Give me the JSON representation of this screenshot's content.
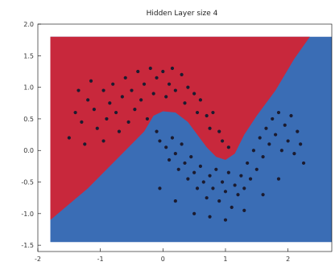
{
  "chart_data": {
    "type": "scatter",
    "title": "Hidden Layer size 4",
    "xlabel": "",
    "ylabel": "",
    "xlim": [
      -2,
      2.7
    ],
    "ylim": [
      -1.6,
      2.0
    ],
    "x_ticks": [
      -2,
      -1,
      0,
      1,
      2
    ],
    "x_tick_labels": [
      "-2",
      "-1",
      "0",
      "1",
      "2"
    ],
    "y_ticks": [
      -1.5,
      -1.0,
      -0.5,
      0.0,
      0.5,
      1.0,
      1.5,
      2.0
    ],
    "y_tick_labels": [
      "-1.5",
      "-1.0",
      "-0.5",
      "0.0",
      "0.5",
      "1.0",
      "1.5",
      "2.0"
    ],
    "grid": false,
    "legend": "none",
    "background_regions": {
      "region_class_0_color": "#c8283c",
      "region_class_1_color": "#3a6db5",
      "boundary": [
        [
          -1.8,
          -1.1
        ],
        [
          -1.2,
          -0.6
        ],
        [
          -0.6,
          0.0
        ],
        [
          -0.3,
          0.3
        ],
        [
          -0.15,
          0.55
        ],
        [
          0.0,
          0.62
        ],
        [
          0.2,
          0.6
        ],
        [
          0.4,
          0.45
        ],
        [
          0.55,
          0.25
        ],
        [
          0.7,
          0.05
        ],
        [
          0.85,
          -0.1
        ],
        [
          1.0,
          -0.15
        ],
        [
          1.15,
          -0.05
        ],
        [
          1.3,
          0.25
        ],
        [
          1.5,
          0.55
        ],
        [
          1.8,
          0.95
        ],
        [
          2.1,
          1.45
        ],
        [
          2.35,
          1.8
        ]
      ],
      "data_extent": {
        "xmin": -1.8,
        "xmax": 2.7,
        "ymin": -1.45,
        "ymax": 1.8
      }
    },
    "point_color": "#1b1b2f",
    "points": [
      [
        -1.4,
        0.6
      ],
      [
        -1.3,
        0.45
      ],
      [
        -1.2,
        0.8
      ],
      [
        -1.1,
        0.65
      ],
      [
        -1.05,
        0.35
      ],
      [
        -0.95,
        0.95
      ],
      [
        -0.9,
        0.5
      ],
      [
        -0.85,
        0.75
      ],
      [
        -0.8,
        1.05
      ],
      [
        -0.75,
        0.6
      ],
      [
        -0.7,
        0.3
      ],
      [
        -0.65,
        0.85
      ],
      [
        -0.6,
        1.15
      ],
      [
        -0.55,
        0.45
      ],
      [
        -0.5,
        0.95
      ],
      [
        -0.45,
        0.65
      ],
      [
        -0.4,
        1.25
      ],
      [
        -0.35,
        0.8
      ],
      [
        -0.3,
        1.05
      ],
      [
        -0.25,
        0.5
      ],
      [
        -0.2,
        1.3
      ],
      [
        -0.15,
        0.9
      ],
      [
        -0.1,
        1.15
      ],
      [
        0.0,
        1.25
      ],
      [
        0.05,
        0.85
      ],
      [
        0.1,
        1.05
      ],
      [
        0.15,
        1.3
      ],
      [
        0.2,
        0.95
      ],
      [
        0.3,
        1.2
      ],
      [
        0.35,
        0.75
      ],
      [
        0.4,
        1.0
      ],
      [
        0.5,
        0.9
      ],
      [
        0.55,
        0.6
      ],
      [
        0.6,
        0.8
      ],
      [
        0.7,
        0.55
      ],
      [
        0.75,
        0.35
      ],
      [
        0.8,
        0.6
      ],
      [
        0.9,
        0.3
      ],
      [
        0.95,
        0.15
      ],
      [
        1.05,
        0.05
      ],
      [
        -1.5,
        0.2
      ],
      [
        -1.25,
        0.1
      ],
      [
        -0.95,
        0.15
      ],
      [
        -1.35,
        0.95
      ],
      [
        -1.15,
        1.1
      ],
      [
        -0.1,
        0.3
      ],
      [
        -0.05,
        0.15
      ],
      [
        0.05,
        0.05
      ],
      [
        0.1,
        -0.15
      ],
      [
        0.15,
        0.2
      ],
      [
        0.2,
        -0.05
      ],
      [
        0.25,
        -0.3
      ],
      [
        0.3,
        0.1
      ],
      [
        0.35,
        -0.2
      ],
      [
        0.4,
        -0.45
      ],
      [
        0.45,
        -0.1
      ],
      [
        0.5,
        -0.35
      ],
      [
        0.55,
        -0.6
      ],
      [
        0.6,
        -0.25
      ],
      [
        0.65,
        -0.5
      ],
      [
        0.7,
        -0.75
      ],
      [
        0.75,
        -0.4
      ],
      [
        0.8,
        -0.6
      ],
      [
        0.85,
        -0.3
      ],
      [
        0.9,
        -0.8
      ],
      [
        0.95,
        -0.5
      ],
      [
        1.0,
        -0.65
      ],
      [
        1.05,
        -0.35
      ],
      [
        1.1,
        -0.9
      ],
      [
        1.15,
        -0.55
      ],
      [
        1.2,
        -0.7
      ],
      [
        1.25,
        -0.4
      ],
      [
        1.3,
        -0.6
      ],
      [
        1.35,
        -0.2
      ],
      [
        1.4,
        -0.45
      ],
      [
        1.45,
        0.0
      ],
      [
        1.5,
        -0.3
      ],
      [
        1.55,
        0.2
      ],
      [
        1.6,
        -0.1
      ],
      [
        1.65,
        0.35
      ],
      [
        1.7,
        0.1
      ],
      [
        1.75,
        0.5
      ],
      [
        1.8,
        0.25
      ],
      [
        1.85,
        0.6
      ],
      [
        1.9,
        0.0
      ],
      [
        1.95,
        0.4
      ],
      [
        2.0,
        0.15
      ],
      [
        2.05,
        0.55
      ],
      [
        2.1,
        -0.05
      ],
      [
        2.15,
        0.3
      ],
      [
        2.2,
        0.1
      ],
      [
        2.25,
        -0.2
      ],
      [
        -0.05,
        -0.6
      ],
      [
        0.2,
        -0.8
      ],
      [
        0.5,
        -1.0
      ],
      [
        0.75,
        -1.05
      ],
      [
        1.0,
        -1.1
      ],
      [
        1.3,
        -0.95
      ],
      [
        1.6,
        -0.7
      ],
      [
        1.85,
        -0.45
      ]
    ]
  }
}
